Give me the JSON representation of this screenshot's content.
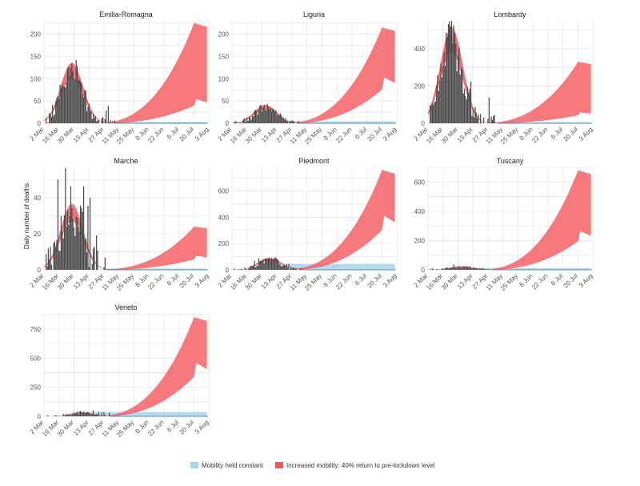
{
  "ylabel": "Daily number of deaths",
  "legend": [
    {
      "label": "Mobility held constant",
      "color": "#a6d4ec"
    },
    {
      "label": "Increased mobility: 40% return to pre-lockdown level",
      "color": "#f4575c"
    }
  ],
  "colors": {
    "bars": "#4a4a4a",
    "constant": "#a6d4ec",
    "increased": "#f4575c",
    "grid": "#e6e6e6"
  },
  "chart_data": [
    {
      "type": "bar",
      "title": "Emilia-Romagna",
      "ylim": [
        0,
        230
      ],
      "yticks": [
        0,
        50,
        100,
        150,
        200
      ],
      "xticks": [
        "2 Mar",
        "16 Mar",
        "30 Mar",
        "13 Apr",
        "27 Apr",
        "11 May",
        "25 May",
        "8 Jun",
        "22 Jun",
        "6 Jul",
        "20 Jul",
        "3 Aug"
      ],
      "peak": 118,
      "peak_day": 26,
      "end_day": 66,
      "jitter": 25,
      "growth_upper": 225,
      "growth_lower": 55,
      "constant_end": 2
    },
    {
      "type": "bar",
      "title": "Liguria",
      "ylim": [
        0,
        230
      ],
      "yticks": [
        0,
        50,
        100,
        150,
        200
      ],
      "xticks": [
        "2 Mar",
        "16 Mar",
        "30 Mar",
        "13 Apr",
        "27 Apr",
        "11 May",
        "25 May",
        "8 Jun",
        "22 Jun",
        "6 Jul",
        "20 Jul",
        "3 Aug"
      ],
      "peak": 36,
      "peak_day": 31,
      "end_day": 62,
      "jitter": 10,
      "growth_upper": 215,
      "growth_lower": 105,
      "constant_end": 3
    },
    {
      "type": "bar",
      "title": "Lombardy",
      "ylim": [
        0,
        550
      ],
      "yticks": [
        0,
        200,
        400
      ],
      "xticks": [
        "2 Mar",
        "16 Mar",
        "30 Mar",
        "13 Apr",
        "27 Apr",
        "11 May",
        "25 May",
        "8 Jun",
        "22 Jun",
        "6 Jul",
        "20 Jul",
        "3 Aug"
      ],
      "peak": 450,
      "peak_day": 22,
      "end_day": 65,
      "jitter": 90,
      "growth_upper": 330,
      "growth_lower": 60,
      "constant_end": 4
    },
    {
      "type": "bar",
      "title": "Marche",
      "ylim": [
        0,
        57
      ],
      "yticks": [
        0,
        20,
        40
      ],
      "xticks": [
        "2 Mar",
        "16 Mar",
        "30 Mar",
        "13 Apr",
        "27 Apr",
        "11 May",
        "25 May",
        "8 Jun",
        "22 Jun",
        "6 Jul",
        "20 Jul",
        "3 Aug"
      ],
      "peak": 32,
      "peak_day": 26,
      "end_day": 58,
      "jitter": 20,
      "growth_upper": 24,
      "growth_lower": 8,
      "constant_end": 0.5
    },
    {
      "type": "bar",
      "title": "Piedmont",
      "ylim": [
        0,
        780
      ],
      "yticks": [
        0,
        200,
        400,
        600
      ],
      "xticks": [
        "2 Mar",
        "16 Mar",
        "30 Mar",
        "13 Apr",
        "27 Apr",
        "11 May",
        "25 May",
        "8 Jun",
        "22 Jun",
        "6 Jul",
        "20 Jul",
        "3 Aug"
      ],
      "peak": 80,
      "peak_day": 35,
      "end_day": 65,
      "jitter": 25,
      "growth_upper": 760,
      "growth_lower": 420,
      "constant_end": 30
    },
    {
      "type": "bar",
      "title": "Tuscany",
      "ylim": [
        0,
        700
      ],
      "yticks": [
        0,
        200,
        400,
        600
      ],
      "xticks": [
        "2 Mar",
        "16 Mar",
        "30 Mar",
        "13 Apr",
        "27 Apr",
        "11 May",
        "25 May",
        "8 Jun",
        "22 Jun",
        "6 Jul",
        "20 Jul",
        "3 Aug"
      ],
      "peak": 22,
      "peak_day": 32,
      "end_day": 60,
      "jitter": 12,
      "growth_upper": 680,
      "growth_lower": 270,
      "constant_end": 8
    },
    {
      "type": "bar",
      "title": "Veneto",
      "ylim": [
        0,
        880
      ],
      "yticks": [
        0,
        250,
        500,
        750
      ],
      "xticks": [
        "2 Mar",
        "16 Mar",
        "30 Mar",
        "13 Apr",
        "27 Apr",
        "11 May",
        "25 May",
        "8 Jun",
        "22 Jun",
        "6 Jul",
        "20 Jul",
        "3 Aug"
      ],
      "peak": 32,
      "peak_day": 35,
      "end_day": 62,
      "jitter": 20,
      "growth_upper": 850,
      "growth_lower": 470,
      "constant_end": 25
    }
  ]
}
